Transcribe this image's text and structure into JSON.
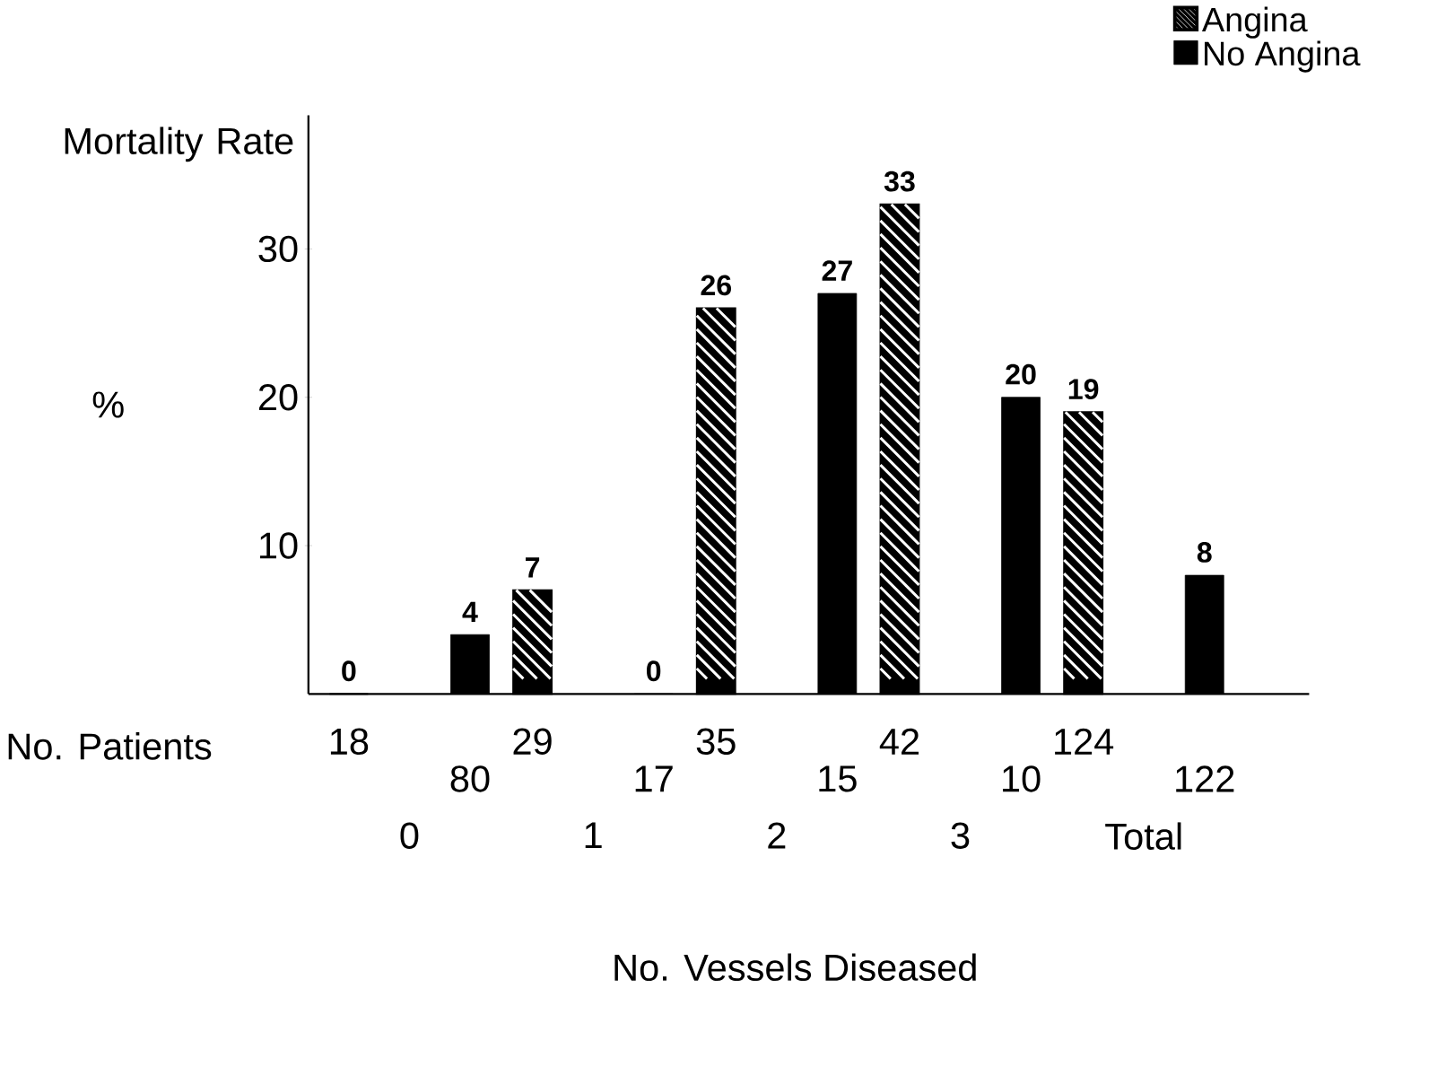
{
  "chart_data": {
    "type": "bar",
    "xlabel": "No. Vessels Diseased",
    "ylabel": "Mortality Rate",
    "categories": [
      "0",
      "1",
      "2",
      "3",
      "Total"
    ],
    "series": [
      {
        "name": "Angina",
        "color": "#000000",
        "values": [
          0,
          7,
          26,
          33,
          19
        ]
      },
      {
        "name": "No Angina",
        "color": "#000000",
        "values": [
          4,
          0,
          27,
          20,
          8
        ]
      }
    ],
    "ylim": [
      0,
      39
    ],
    "yticks": [
      10,
      20,
      30
    ],
    "data_labels": true,
    "legend": "top right",
    "annotations": [
      "%",
      "No. Patients",
      "18",
      "80",
      "29",
      "17",
      "35",
      "15",
      "42",
      "10",
      "124",
      "122"
    ]
  }
}
